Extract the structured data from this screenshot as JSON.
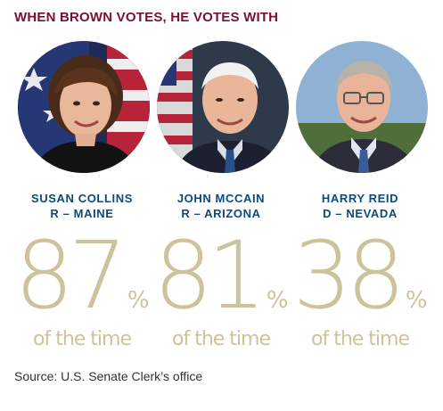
{
  "title": "WHEN BROWN VOTES, HE VOTES WITH",
  "senators": [
    {
      "name": "SUSAN COLLINS",
      "party_state": "R – MAINE",
      "percent": "87",
      "percent_sign": "%",
      "caption": "of the time"
    },
    {
      "name": "JOHN MCCAIN",
      "party_state": "R – ARIZONA",
      "percent": "81",
      "percent_sign": "%",
      "caption": "of the time"
    },
    {
      "name": "HARRY REID",
      "party_state": "D – NEVADA",
      "percent": "38",
      "percent_sign": "%",
      "caption": "of the time"
    }
  ],
  "source": "Source: U.S. Senate Clerk’s office",
  "colors": {
    "title": "#7a1030",
    "name": "#0d4a7a",
    "percent": "#cdc39b",
    "source": "#333333"
  }
}
